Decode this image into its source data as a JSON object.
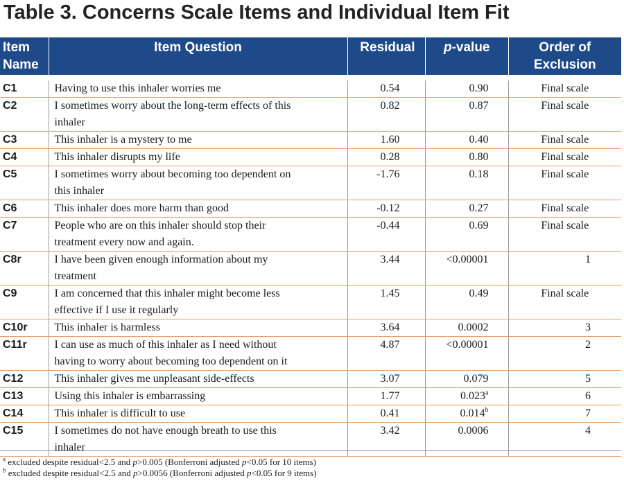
{
  "title": "Table 3. Concerns Scale Items and Individual Item Fit",
  "columns": {
    "item_name": "Item Name",
    "item_question": "Item Question",
    "residual": "Residual",
    "pvalue_prefix": "p",
    "pvalue_suffix": "-value",
    "order": "Order of Exclusion"
  },
  "rows": [
    {
      "name": "C1",
      "q1": "Having to use this inhaler worries me",
      "q2": "",
      "residual": "0.54",
      "p": "0.90",
      "sup": "",
      "order": "Final scale"
    },
    {
      "name": "C2",
      "q1": "I sometimes worry about the long-term effects of this",
      "q2": "inhaler",
      "residual": "0.82",
      "p": "0.87",
      "sup": "",
      "order": "Final scale"
    },
    {
      "name": "C3",
      "q1": "This inhaler is a mystery to me",
      "q2": "",
      "residual": "1.60",
      "p": "0.40",
      "sup": "",
      "order": "Final scale"
    },
    {
      "name": "C4",
      "q1": "This inhaler disrupts my life",
      "q2": "",
      "residual": "0.28",
      "p": "0.80",
      "sup": "",
      "order": "Final scale"
    },
    {
      "name": "C5",
      "q1": "I sometimes worry about becoming too dependent on",
      "q2": "this inhaler",
      "residual": "-1.76",
      "p": "0.18",
      "sup": "",
      "order": "Final scale"
    },
    {
      "name": "C6",
      "q1": "This inhaler does more harm than good",
      "q2": "",
      "residual": "-0.12",
      "p": "0.27",
      "sup": "",
      "order": "Final scale"
    },
    {
      "name": "C7",
      "q1": "People who are on this inhaler should stop their",
      "q2": "treatment every now and again.",
      "residual": "-0.44",
      "p": "0.69",
      "sup": "",
      "order": "Final scale"
    },
    {
      "name": "C8r",
      "q1": "I have been given enough information about my",
      "q2": "treatment",
      "residual": "3.44",
      "p": "<0.00001",
      "sup": "",
      "order": "1"
    },
    {
      "name": "C9",
      "q1": "I am concerned that this inhaler might become less",
      "q2": "effective if I use it regularly",
      "residual": "1.45",
      "p": "0.49",
      "sup": "",
      "order": "Final scale"
    },
    {
      "name": "C10r",
      "q1": "This inhaler is harmless",
      "q2": "",
      "residual": "3.64",
      "p": "0.0002",
      "sup": "",
      "order": "3"
    },
    {
      "name": "C11r",
      "q1": "I can use as much of this inhaler as I need  without",
      "q2": "having to worry about becoming too dependent on it",
      "residual": "4.87",
      "p": "<0.00001",
      "sup": "",
      "order": "2"
    },
    {
      "name": "C12",
      "q1": "This inhaler gives me unpleasant side-effects",
      "q2": "",
      "residual": "3.07",
      "p": "0.079",
      "sup": "",
      "order": "5"
    },
    {
      "name": "C13",
      "q1": "Using this inhaler is embarrassing",
      "q2": "",
      "residual": "1.77",
      "p": "0.023",
      "sup": "a",
      "order": "6"
    },
    {
      "name": "C14",
      "q1": "This inhaler is difficult to use",
      "q2": "",
      "residual": "0.41",
      "p": "0.014",
      "sup": "b",
      "order": "7"
    },
    {
      "name": "C15",
      "q1": "I sometimes do not have enough breath to use this",
      "q2": "inhaler",
      "residual": "3.42",
      "p": "0.0006",
      "sup": "",
      "order": "4"
    }
  ],
  "footnotes": [
    {
      "mark": "a",
      "t1": " excluded despite residual<2.5 and ",
      "i1": "p",
      "t2": ">0.005 (Bonferroni adjusted ",
      "i2": "p",
      "t3": "<0.05 for 10 items)"
    },
    {
      "mark": "b",
      "t1": " excluded despite residual<2.5 and ",
      "i1": "p",
      "t2": ">0.0056 (Bonferroni adjusted ",
      "i2": "p",
      "t3": "<0.05 for 9 items)"
    }
  ],
  "colors": {
    "header_bg": "#1f4a8a",
    "row_rule": "#e59a62",
    "header_text": "#ffffff"
  }
}
